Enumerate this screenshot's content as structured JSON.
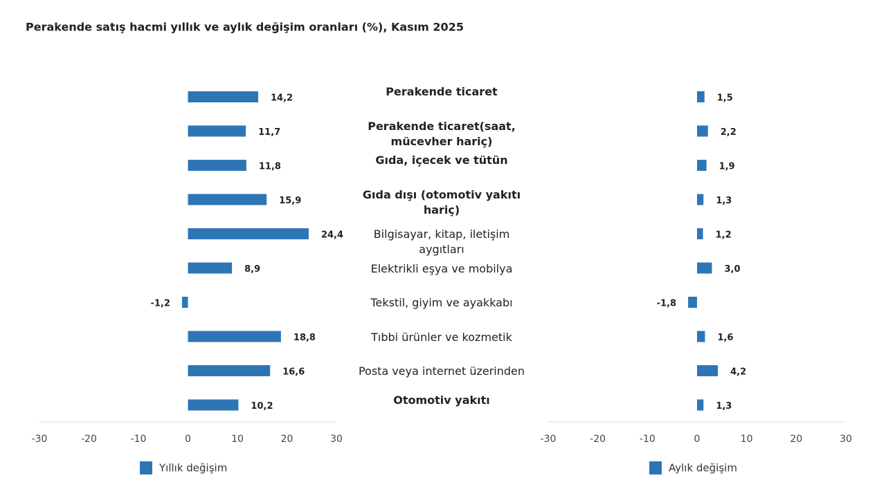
{
  "chart_data": [
    {
      "type": "bar",
      "orientation": "horizontal",
      "title": "Perakende satış hacmi yıllık ve aylık değişim oranları (%), Kasım 2025",
      "categories": [
        "Perakende ticaret",
        "Perakende ticaret(saat, mücevher hariç)",
        "Gıda, içecek ve tütün",
        "Gıda dışı (otomotiv yakıtı hariç)",
        "Bilgisayar, kitap, iletişim aygıtları",
        "Elektrikli eşya ve mobilya",
        "Tekstil, giyim ve ayakkabı",
        "Tıbbi ürünler ve kozmetik",
        "Posta veya internet üzerinden",
        "Otomotiv yakıtı"
      ],
      "category_bold": [
        true,
        true,
        true,
        true,
        false,
        false,
        false,
        false,
        false,
        true
      ],
      "series": [
        {
          "name": "Yıllık değişim",
          "color": "#2e75b6",
          "values": [
            14.2,
            11.7,
            11.8,
            15.9,
            24.4,
            8.9,
            -1.2,
            18.8,
            16.6,
            10.2
          ],
          "value_labels": [
            "14,2",
            "11,7",
            "11,8",
            "15,9",
            "24,4",
            "8,9",
            "-1,2",
            "18,8",
            "16,6",
            "10,2"
          ]
        }
      ],
      "xlim": [
        -30,
        30
      ],
      "xticks": [
        -30,
        -20,
        -10,
        0,
        10,
        20,
        30
      ],
      "grid": false
    },
    {
      "type": "bar",
      "orientation": "horizontal",
      "series": [
        {
          "name": "Aylık değişim",
          "color": "#2e75b6",
          "values": [
            1.5,
            2.2,
            1.9,
            1.3,
            1.2,
            3.0,
            -1.8,
            1.6,
            4.2,
            1.3
          ],
          "value_labels": [
            "1,5",
            "2,2",
            "1,9",
            "1,3",
            "1,2",
            "3,0",
            "-1,8",
            "1,6",
            "4,2",
            "1,3"
          ]
        }
      ],
      "xlim": [
        -30,
        30
      ],
      "xticks": [
        -30,
        -20,
        -10,
        0,
        10,
        20,
        30
      ],
      "grid": false
    }
  ]
}
